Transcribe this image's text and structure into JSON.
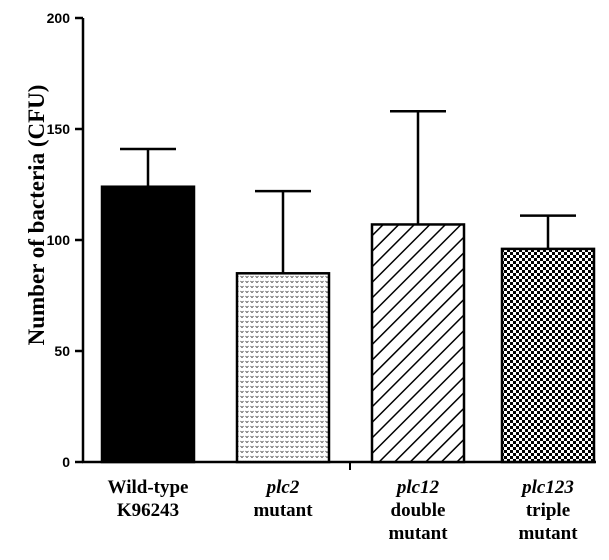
{
  "chart_data": {
    "type": "bar",
    "title": "",
    "xlabel": "",
    "ylabel": "Number of bacteria (CFU)",
    "ylim": [
      0,
      200
    ],
    "yticks": [
      0,
      50,
      100,
      150,
      200
    ],
    "grid": false,
    "legend": "none",
    "categories": [
      {
        "lines": [
          {
            "text": "Wild-type",
            "italic": false
          },
          {
            "text": "K96243",
            "italic": false
          }
        ],
        "pattern": "solid-black"
      },
      {
        "lines": [
          {
            "text": "plc2",
            "italic": true
          },
          {
            "text": "mutant",
            "italic": false
          }
        ],
        "pattern": "dots"
      },
      {
        "lines": [
          {
            "text": "plc12",
            "italic": true
          },
          {
            "text": "double",
            "italic": false
          },
          {
            "text": "mutant",
            "italic": false
          }
        ],
        "pattern": "diagonal-hatch"
      },
      {
        "lines": [
          {
            "text": "plc123",
            "italic": true
          },
          {
            "text": "triple",
            "italic": false
          },
          {
            "text": "mutant",
            "italic": false
          }
        ],
        "pattern": "checker"
      }
    ],
    "values": [
      124,
      85,
      107,
      96
    ],
    "error_upper": [
      141,
      122,
      158,
      111
    ]
  }
}
